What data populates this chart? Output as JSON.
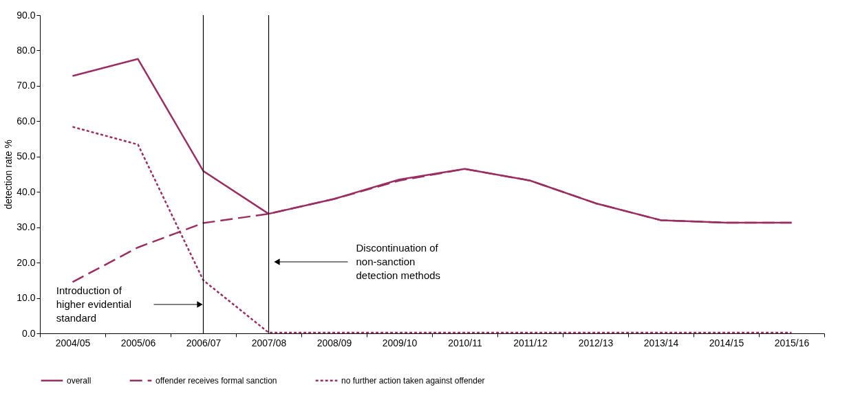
{
  "chart_data": {
    "type": "line",
    "ylabel": "detection rate %",
    "categories": [
      "2004/05",
      "2005/06",
      "2006/07",
      "2007/08",
      "2008/09",
      "2009/10",
      "2010/11",
      "2011/12",
      "2012/13",
      "2013/14",
      "2014/15",
      "2015/16"
    ],
    "series": [
      {
        "name": "overall",
        "color": "#9b2d62",
        "line_style": "solid",
        "values": [
          72.8,
          77.6,
          45.9,
          33.8,
          38.0,
          43.5,
          46.5,
          43.2,
          36.8,
          32.0,
          31.3,
          31.3
        ]
      },
      {
        "name": "offender receives formal sanction",
        "color": "#9b2d62",
        "line_style": "dashed",
        "values": [
          14.5,
          24.3,
          31.2,
          33.8,
          38.0,
          43.2,
          46.5,
          43.2,
          36.8,
          32.0,
          31.3,
          31.3
        ]
      },
      {
        "name": "no further action taken against offender",
        "color": "#9b2d62",
        "line_style": "dotted",
        "values": [
          58.4,
          53.4,
          15.0,
          0.2,
          0.2,
          0.2,
          0.2,
          0.2,
          0.2,
          0.2,
          0.2,
          0.2
        ]
      }
    ],
    "ylim": [
      0,
      90
    ],
    "yticks": [
      {
        "value": 0,
        "label": "0.0"
      },
      {
        "value": 10,
        "label": "10.0"
      },
      {
        "value": 20,
        "label": "20.0"
      },
      {
        "value": 30,
        "label": "30.0"
      },
      {
        "value": 40,
        "label": "40.0"
      },
      {
        "value": 50,
        "label": "50.0"
      },
      {
        "value": 60,
        "label": "60.0"
      },
      {
        "value": 70,
        "label": "70.0"
      },
      {
        "value": 80,
        "label": "80.0"
      },
      {
        "value": 90,
        "label": "90.0"
      }
    ],
    "ref_lines": [
      {
        "axis": "x",
        "value": "2006/07",
        "color": "#000000"
      },
      {
        "axis": "x",
        "value": "2007/08",
        "color": "#000000"
      }
    ],
    "annotations": [
      "Introduction of higher evidential standard",
      "Discontinuation of non-sanction detection methods"
    ],
    "grid": false,
    "legend": "bottom",
    "marker": "none"
  }
}
